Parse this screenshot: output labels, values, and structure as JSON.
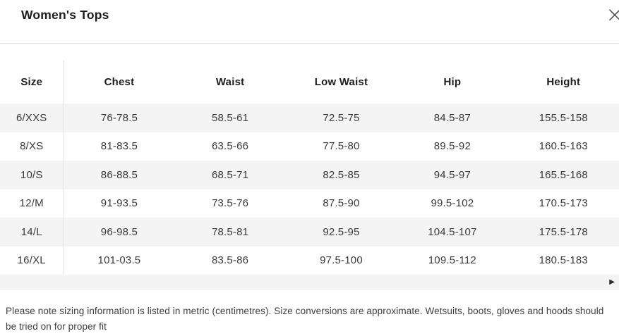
{
  "modal": {
    "title": "Women's Tops"
  },
  "icons": {
    "close": "×",
    "scroll_right": "▶"
  },
  "table": {
    "columns": [
      "Size",
      "Chest",
      "Waist",
      "Low Waist",
      "Hip",
      "Height"
    ],
    "rows": [
      {
        "size": "6/XXS",
        "chest": "76-78.5",
        "waist": "58.5-61",
        "low_waist": "72.5-75",
        "hip": "84.5-87",
        "height": "155.5-158"
      },
      {
        "size": "8/XS",
        "chest": "81-83.5",
        "waist": "63.5-66",
        "low_waist": "77.5-80",
        "hip": "89.5-92",
        "height": "160.5-163"
      },
      {
        "size": "10/S",
        "chest": "86-88.5",
        "waist": "68.5-71",
        "low_waist": "82.5-85",
        "hip": "94.5-97",
        "height": "165.5-168"
      },
      {
        "size": "12/M",
        "chest": "91-93.5",
        "waist": "73.5-76",
        "low_waist": "87.5-90",
        "hip": "99.5-102",
        "height": "170.5-173"
      },
      {
        "size": "14/L",
        "chest": "96-98.5",
        "waist": "78.5-81",
        "low_waist": "92.5-95",
        "hip": "104.5-107",
        "height": "175.5-178"
      },
      {
        "size": "16/XL",
        "chest": "101-03.5",
        "waist": "83.5-86",
        "low_waist": "97.5-100",
        "hip": "109.5-112",
        "height": "180.5-183"
      }
    ]
  },
  "footer": {
    "note": "Please note sizing information is listed in metric (centimetres). Size conversions are approximate. Wetsuits, boots, gloves and hoods should be tried on for proper fit"
  },
  "colors": {
    "stripe": "#f4f4f4",
    "divider": "#e8e8e8",
    "heading_text": "#1d1d1d",
    "cell_text": "#3a3a3a"
  }
}
